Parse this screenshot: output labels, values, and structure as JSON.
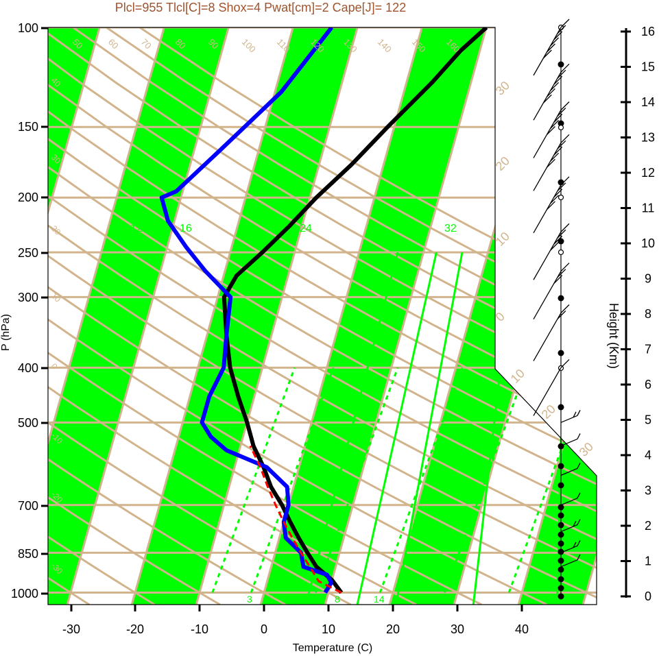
{
  "title": "Plcl=955 Tlcl[C]=8 Shox=4 Pwat[cm]=2 Cape[J]= 122",
  "colors": {
    "title": "#a0522d",
    "isotherm": "#d2b48c",
    "band": "#00ff00",
    "temperature": "#000000",
    "dewpoint": "#0000ff",
    "parcel": "#ff0000",
    "mixing_ratio": "#00ff00"
  },
  "chart_data": {
    "type": "line",
    "title": "Plcl=955 Tlcl[C]=8 Shox=4 Pwat[cm]=2 Cape[J]= 122",
    "xlabel": "Temperature (C)",
    "ylabel": "P (hPa)",
    "y2label": "Height (Km)",
    "x_ticks": [
      "-30",
      "-20",
      "-10",
      "0",
      "10",
      "20",
      "30",
      "40"
    ],
    "y_ticks": [
      "100",
      "150",
      "200",
      "250",
      "300",
      "400",
      "500",
      "700",
      "850",
      "1000"
    ],
    "y2_ticks": [
      "0",
      "1",
      "2",
      "3",
      "4",
      "5",
      "6",
      "7",
      "8",
      "9",
      "10",
      "11",
      "12",
      "13",
      "14",
      "15",
      "16"
    ],
    "xlim": [
      -33,
      52
    ],
    "ylim_hpa": [
      1050,
      100
    ],
    "y_scale": "log",
    "isotherm_labels_left": [
      "50",
      "60",
      "70",
      "80",
      "90",
      "100",
      "110",
      "120",
      "130",
      "140",
      "150",
      "160"
    ],
    "isotherm_labels_right": [
      "30",
      "20",
      "10",
      "0"
    ],
    "isotherm_labels_lower": [
      "10",
      "20",
      "30"
    ],
    "side_labels": [
      "40",
      "30",
      "20",
      "10",
      "0",
      "-10",
      "-20",
      "-30"
    ],
    "mixing_ratio_labels": [
      "12",
      "16",
      "24",
      "32"
    ],
    "mixing_ratio_lower": [
      "3",
      "8",
      "14"
    ],
    "series": [
      {
        "kind": "temperature",
        "points": [
          [
            12,
            1000
          ],
          [
            10,
            950
          ],
          [
            7,
            900
          ],
          [
            5,
            850
          ],
          [
            3,
            800
          ],
          [
            1,
            750
          ],
          [
            -1,
            700
          ],
          [
            -3.5,
            650
          ],
          [
            -5.5,
            600
          ],
          [
            -8,
            550
          ],
          [
            -10,
            500
          ],
          [
            -12.5,
            450
          ],
          [
            -15,
            400
          ],
          [
            -17,
            350
          ],
          [
            -19,
            300
          ],
          [
            -18,
            275
          ],
          [
            -15,
            250
          ],
          [
            -12,
            225
          ],
          [
            -9,
            200
          ],
          [
            -5,
            175
          ],
          [
            -1,
            150
          ],
          [
            4,
            125
          ],
          [
            7,
            110
          ],
          [
            10,
            100
          ]
        ]
      },
      {
        "kind": "dewpoint",
        "points": [
          [
            9.5,
            1000
          ],
          [
            10,
            960
          ],
          [
            9,
            930
          ],
          [
            5,
            900
          ],
          [
            4,
            850
          ],
          [
            1,
            800
          ],
          [
            0,
            750
          ],
          [
            0,
            700
          ],
          [
            -1,
            650
          ],
          [
            -5,
            600
          ],
          [
            -12,
            560
          ],
          [
            -15,
            530
          ],
          [
            -17,
            500
          ],
          [
            -17,
            450
          ],
          [
            -16,
            400
          ],
          [
            -17,
            350
          ],
          [
            -18,
            300
          ],
          [
            -23,
            270
          ],
          [
            -27,
            245
          ],
          [
            -31,
            220
          ],
          [
            -33,
            200
          ],
          [
            -31,
            195
          ],
          [
            -26,
            165
          ],
          [
            -19,
            130
          ],
          [
            -14,
            100
          ]
        ]
      },
      {
        "kind": "parcel",
        "points": [
          [
            12,
            1000
          ],
          [
            8,
            955
          ],
          [
            6,
            900
          ],
          [
            4,
            850
          ],
          [
            2,
            800
          ],
          [
            0,
            750
          ],
          [
            -2,
            700
          ],
          [
            -4,
            650
          ],
          [
            -6,
            600
          ],
          [
            -8.5,
            550
          ]
        ]
      }
    ],
    "wind_barbs_upper": [
      {
        "p": 100,
        "speed": 60
      },
      {
        "p": 120,
        "speed": 55
      },
      {
        "p": 140,
        "speed": 50
      },
      {
        "p": 160,
        "speed": 50
      },
      {
        "p": 190,
        "speed": 45
      },
      {
        "p": 230,
        "speed": 40
      },
      {
        "p": 270,
        "speed": 30
      },
      {
        "p": 320,
        "speed": 15
      },
      {
        "p": 400,
        "speed": 5
      }
    ],
    "wind_barbs_lower": [
      {
        "p": 500,
        "speed": 15
      },
      {
        "p": 550,
        "speed": 10
      },
      {
        "p": 620,
        "speed": 10
      },
      {
        "p": 700,
        "speed": 10
      },
      {
        "p": 780,
        "speed": 15
      },
      {
        "p": 850,
        "speed": 20
      },
      {
        "p": 900,
        "speed": 10
      }
    ]
  }
}
